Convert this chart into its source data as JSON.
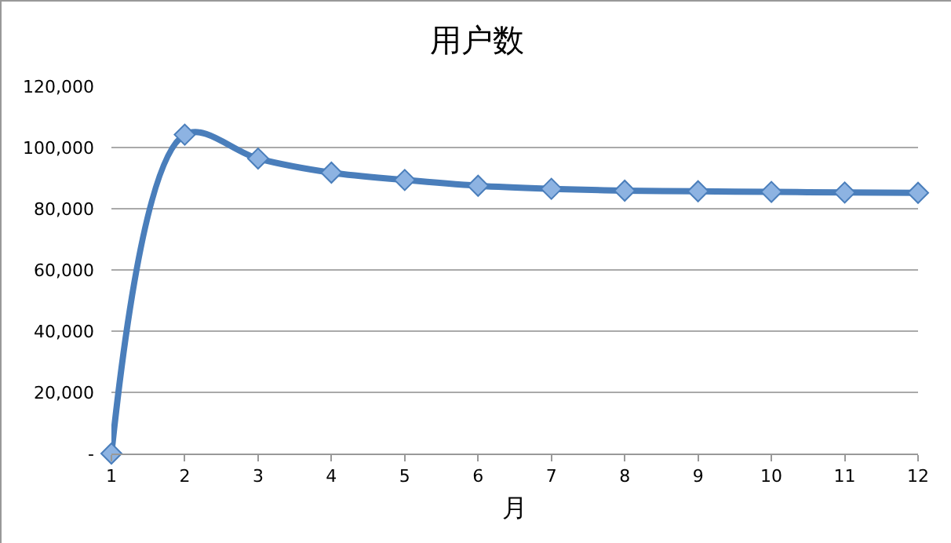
{
  "chart_data": {
    "type": "line",
    "title": "用户数",
    "xlabel": "月",
    "x": [
      1,
      2,
      3,
      4,
      5,
      6,
      7,
      8,
      9,
      10,
      11,
      12
    ],
    "series": [
      {
        "color": "#4a7ebb",
        "values": [
          0,
          104200,
          96400,
          91800,
          89400,
          87500,
          86500,
          85900,
          85700,
          85500,
          85300,
          85200
        ]
      }
    ],
    "xlim": [
      1,
      12
    ],
    "xticks": [
      1,
      2,
      3,
      4,
      5,
      6,
      7,
      8,
      9,
      10,
      11,
      12
    ],
    "ylim": [
      0,
      120000
    ],
    "yticks": [
      {
        "value": 0,
        "label": "-"
      },
      {
        "value": 20000,
        "label": "20,000"
      },
      {
        "value": 40000,
        "label": "40,000"
      },
      {
        "value": 60000,
        "label": "60,000"
      },
      {
        "value": 80000,
        "label": "80,000"
      },
      {
        "value": 100000,
        "label": "100,000"
      },
      {
        "value": 120000,
        "label": "120,000"
      }
    ],
    "grid": "y",
    "marker": "diamond",
    "line_style": "solid"
  }
}
